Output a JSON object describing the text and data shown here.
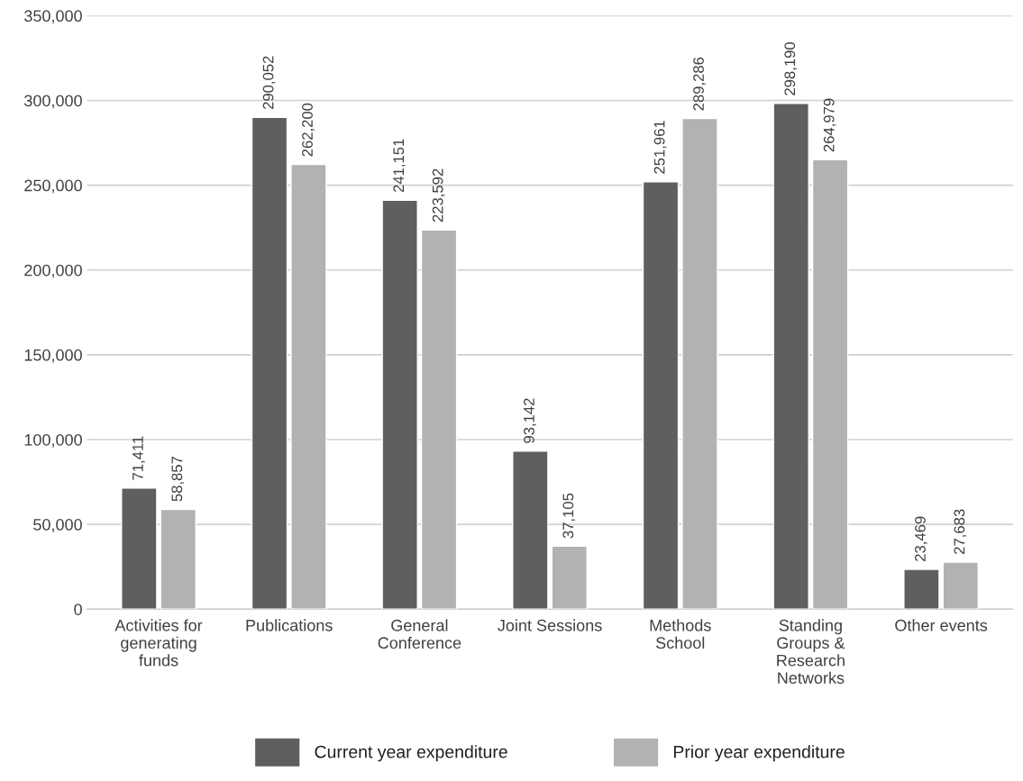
{
  "chart_data": {
    "type": "bar",
    "categories": [
      "Activities for\ngenerating\nfunds",
      "Publications",
      "General\nConference",
      "Joint Sessions",
      "Methods\nSchool",
      "Standing\nGroups &\nResearch\nNetworks",
      "Other events"
    ],
    "series": [
      {
        "name": "Current year expenditure",
        "color": "#5f5f5f",
        "values": [
          71411,
          290052,
          241151,
          93142,
          251961,
          298190,
          23469
        ],
        "value_labels": [
          "71,411",
          "290,052",
          "241,151",
          "93,142",
          "251,961",
          "298,190",
          "23,469"
        ]
      },
      {
        "name": "Prior year expenditure",
        "color": "#b2b2b2",
        "values": [
          58857,
          262200,
          223592,
          37105,
          289286,
          264979,
          27683
        ],
        "value_labels": [
          "58,857",
          "262,200",
          "223,592",
          "37,105",
          "289,286",
          "264,979",
          "27,683"
        ]
      }
    ],
    "ylim": [
      0,
      350000
    ],
    "yticks": [
      {
        "value": 0,
        "label": "0"
      },
      {
        "value": 50000,
        "label": "50,000"
      },
      {
        "value": 100000,
        "label": "100,000"
      },
      {
        "value": 150000,
        "label": "150,000"
      },
      {
        "value": 200000,
        "label": "200,000"
      },
      {
        "value": 250000,
        "label": "250,000"
      },
      {
        "value": 300000,
        "label": "300,000"
      },
      {
        "value": 350000,
        "label": "350,000"
      }
    ],
    "grid": "y",
    "legend": "bottom"
  }
}
